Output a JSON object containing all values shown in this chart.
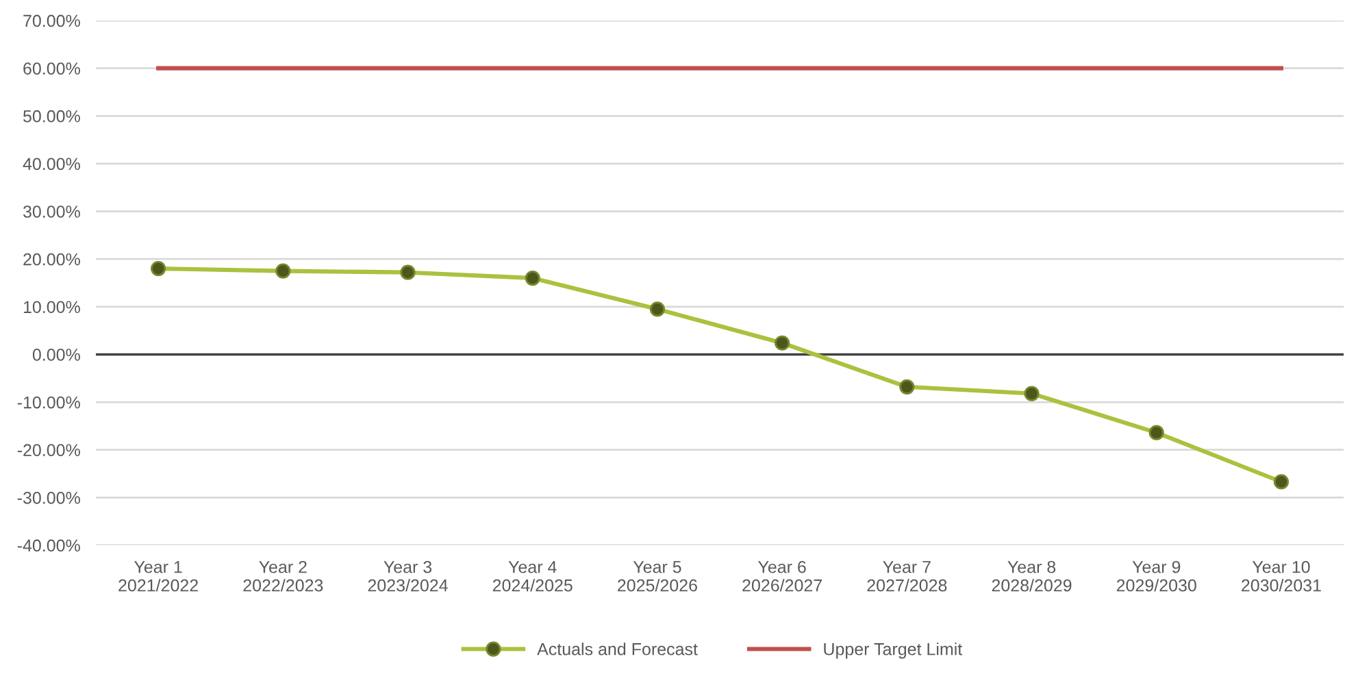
{
  "chart_data": {
    "type": "line",
    "categories": [
      "Year 1\n2021/2022",
      "Year 2\n2022/2023",
      "Year 3\n2023/2024",
      "Year 4\n2024/2025",
      "Year 5\n2025/2026",
      "Year 6\n2026/2027",
      "Year 7\n2027/2028",
      "Year 8\n2028/2029",
      "Year 9\n2029/2030",
      "Year 10\n2030/2031"
    ],
    "series": [
      {
        "name": "Actuals and Forecast",
        "color": "#a9c23f",
        "marker": "circle",
        "values": [
          18.0,
          17.5,
          17.2,
          16.0,
          9.5,
          2.4,
          -6.8,
          -8.2,
          -16.4,
          -26.7
        ]
      },
      {
        "name": "Upper Target Limit",
        "color": "#c0504d",
        "marker": "none",
        "values": [
          60,
          60,
          60,
          60,
          60,
          60,
          60,
          60,
          60,
          60
        ]
      }
    ],
    "ylim": [
      -40,
      70
    ],
    "yticks": [
      {
        "value": -40,
        "label": "-40.00%"
      },
      {
        "value": -30,
        "label": "-30.00%"
      },
      {
        "value": -20,
        "label": "-20.00%"
      },
      {
        "value": -10,
        "label": "-10.00%"
      },
      {
        "value": 0,
        "label": "0.00%"
      },
      {
        "value": 10,
        "label": "10.00%"
      },
      {
        "value": 20,
        "label": "20.00%"
      },
      {
        "value": 30,
        "label": "30.00%"
      },
      {
        "value": 40,
        "label": "40.00%"
      },
      {
        "value": 50,
        "label": "50.00%"
      },
      {
        "value": 60,
        "label": "60.00%"
      },
      {
        "value": 70,
        "label": "70.00%"
      }
    ],
    "grid": "y",
    "legend": "bottom",
    "ref_lines": [
      {
        "axis": "y",
        "value": 0,
        "color": "#404040"
      }
    ]
  }
}
